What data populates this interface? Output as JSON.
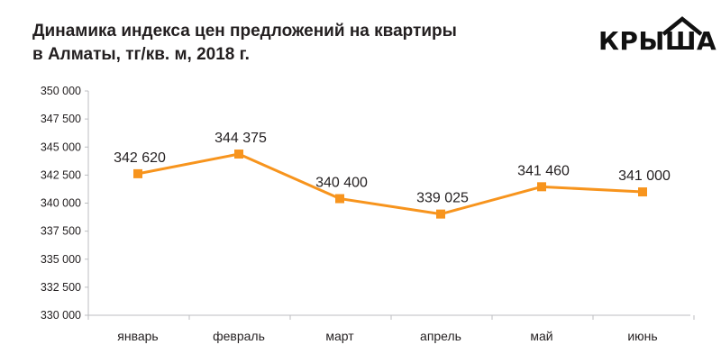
{
  "header": {
    "title_line1": "Динамика индекса цен предложений на квартиры",
    "title_line2": "в Алматы, тг/кв. м, 2018 г."
  },
  "logo": {
    "text": "КРЫША"
  },
  "colors": {
    "series": "#f7941d",
    "axis": "#bcbec0",
    "text": "#231f20"
  },
  "chart_data": {
    "type": "line",
    "title": "Динамика индекса цен предложений на квартиры в Алматы, тг/кв. м, 2018 г.",
    "xlabel": "",
    "ylabel": "",
    "categories": [
      "январь",
      "февраль",
      "март",
      "апрель",
      "май",
      "июнь"
    ],
    "series": [
      {
        "name": "тг/кв. м",
        "values": [
          342620,
          344375,
          340400,
          339025,
          341460,
          341000
        ],
        "labels": [
          "342 620",
          "344 375",
          "340 400",
          "339 025",
          "341 460",
          "341 000"
        ]
      }
    ],
    "ylim": [
      330000,
      350000
    ],
    "yticks": [
      330000,
      332500,
      335000,
      337500,
      340000,
      342500,
      345000,
      347500,
      350000
    ],
    "ytick_labels": [
      "330 000",
      "332 500",
      "335 000",
      "337 500",
      "340 000",
      "342 500",
      "345 000",
      "347 500",
      "350 000"
    ],
    "grid": false,
    "legend": "none"
  }
}
